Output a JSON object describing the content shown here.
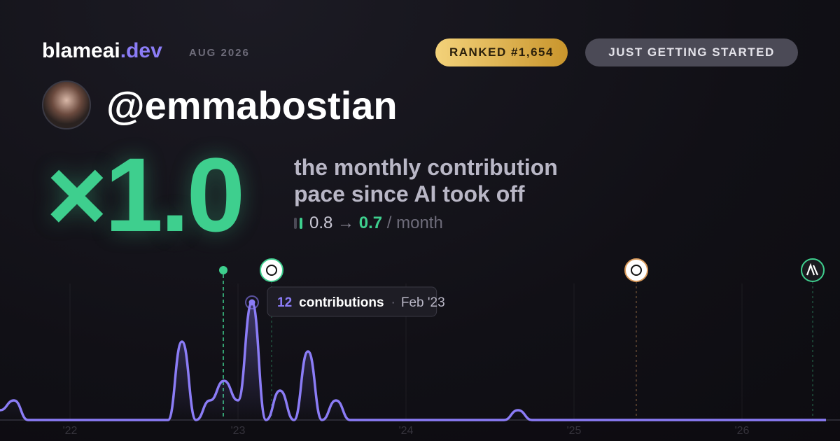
{
  "header": {
    "brand": "blameai",
    "tld": ".dev",
    "date": "AUG 2026",
    "rank": "RANKED #1,654",
    "status": "JUST GETTING STARTED"
  },
  "profile": {
    "username": "@emmabostian"
  },
  "score": {
    "multiplier": "×1.0",
    "description": [
      "the monthly contribution",
      "pace since AI took off"
    ],
    "before": "0.8",
    "arrow": "→",
    "after": "0.7",
    "unit": "/ month"
  },
  "chart_data": {
    "type": "line",
    "categories": [
      null,
      null,
      null,
      null,
      null,
      "'22",
      null,
      null,
      null,
      null,
      null,
      null,
      null,
      null,
      null,
      null,
      null,
      "'23",
      null,
      null,
      null,
      null,
      null,
      null,
      null,
      null,
      null,
      null,
      null,
      "'24",
      null,
      null,
      null,
      null,
      null,
      null,
      null,
      null,
      null,
      null,
      null,
      "'25",
      null,
      null,
      null,
      null,
      null,
      null,
      null,
      null,
      null,
      null,
      null,
      "'26",
      null,
      null,
      null,
      null,
      null,
      null
    ],
    "series": [
      {
        "name": "contributions",
        "color": "#8b7cf6",
        "values": [
          1,
          2,
          0,
          0,
          0,
          0,
          0,
          0,
          0,
          0,
          0,
          0,
          0,
          8,
          0,
          2,
          4,
          2,
          12,
          0,
          3,
          0,
          7,
          0,
          2,
          0,
          0,
          0,
          0,
          0,
          0,
          0,
          0,
          0,
          0,
          0,
          0,
          1,
          0,
          0,
          0,
          0,
          0,
          0,
          0,
          0,
          0,
          0,
          0,
          0,
          0,
          0,
          0,
          0,
          0,
          0,
          0,
          0,
          0,
          0
        ]
      }
    ],
    "ylim": [
      0,
      12
    ],
    "grid": true,
    "tooltip": {
      "label": "contributions",
      "date": "Feb '23"
    }
  }
}
